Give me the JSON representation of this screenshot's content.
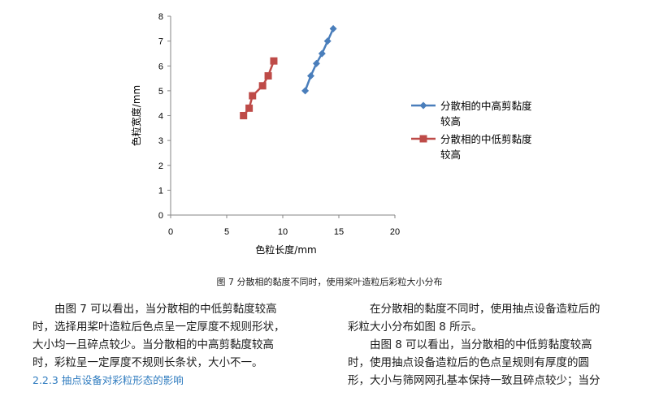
{
  "chart_data": {
    "type": "line",
    "xlabel": "色粒长度/mm",
    "ylabel": "色粒宽度/mm",
    "xlim": [
      0,
      20
    ],
    "ylim": [
      0,
      8
    ],
    "xticks": [
      0,
      5,
      10,
      15,
      20
    ],
    "yticks": [
      0,
      1,
      2,
      3,
      4,
      5,
      6,
      7,
      8
    ],
    "grid": false,
    "legend_position": "right",
    "series": [
      {
        "name": "分散相的中高剪黏度较高",
        "legend_lines": [
          "分散相的中高剪黏度",
          "较高"
        ],
        "color": "#4a7ebb",
        "marker": "diamond",
        "points": [
          [
            12.0,
            5.0
          ],
          [
            12.5,
            5.6
          ],
          [
            13.0,
            6.1
          ],
          [
            13.5,
            6.5
          ],
          [
            14.0,
            7.0
          ],
          [
            14.5,
            7.5
          ]
        ]
      },
      {
        "name": "分散相的中低剪黏度较高",
        "legend_lines": [
          "分散相的中低剪黏度",
          "较高"
        ],
        "color": "#be4b48",
        "marker": "square",
        "points": [
          [
            6.5,
            4.0
          ],
          [
            7.0,
            4.3
          ],
          [
            7.3,
            4.8
          ],
          [
            8.2,
            5.2
          ],
          [
            8.7,
            5.6
          ],
          [
            9.2,
            6.2
          ]
        ]
      }
    ]
  },
  "caption": "图 7 分散相的黏度不同时，使用桨叶造粒后彩粒大小分布",
  "left_column": {
    "paragraph": [
      "由图 7 可以看出，当分散相的中低剪黏度较高",
      "时，选择用桨叶造粒后色点呈一定厚度不规则形状，",
      "大小均一且碎点较少。当分散相的中高剪黏度较高",
      "时，彩粒呈一定厚度不规则长条状，大小不一。"
    ],
    "heading": "2.2.3  抽点设备对彩粒形态的影响"
  },
  "right_column": {
    "paragraph1": [
      "在分散相的黏度不同时，使用抽点设备造粒后的",
      "彩粒大小分布如图 8 所示。"
    ],
    "paragraph2": [
      "由图 8 可以看出，当分散相的中低剪黏度较高",
      "时，使用抽点设备造粒后的色点呈规则有厚度的圆",
      "形，大小与筛网网孔基本保持一致且碎点较少；当分"
    ]
  }
}
